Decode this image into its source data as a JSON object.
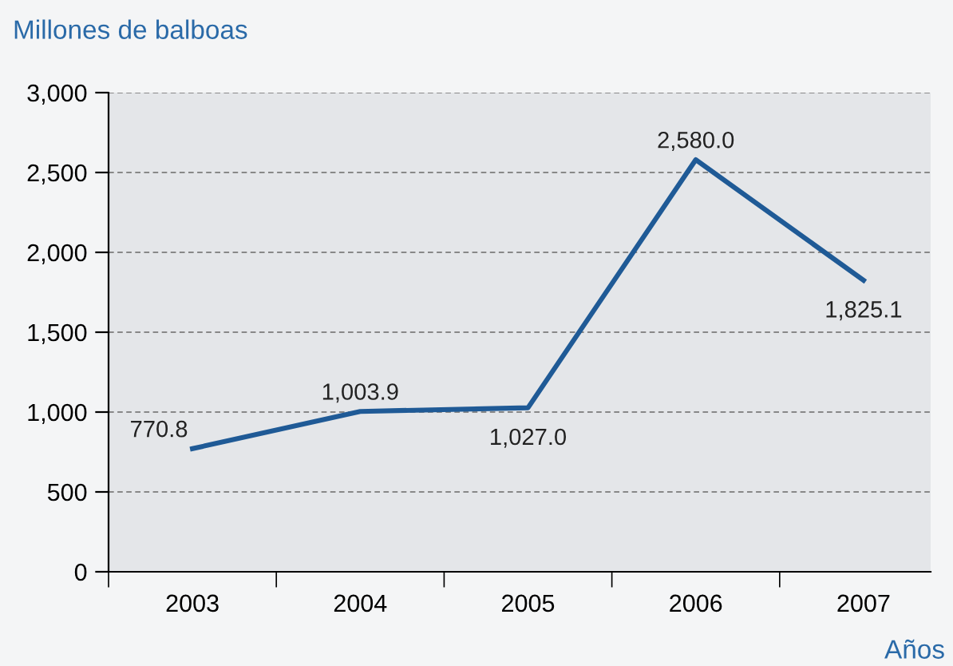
{
  "chart_data": {
    "type": "line",
    "ylabel": "Millones de balboas",
    "xlabel": "Años",
    "categories": [
      "2003",
      "2004",
      "2005",
      "2006",
      "2007"
    ],
    "series": [
      {
        "color": "#1f5a96",
        "values": [
          770.8,
          1003.9,
          1027.0,
          2580.0,
          1825.1
        ],
        "value_labels": [
          "770.8",
          "1,003.9",
          "1,027.0",
          "2,580.0",
          "1,825.1"
        ]
      }
    ],
    "ylim": [
      0,
      3000
    ],
    "yticks": [
      0,
      500,
      {
        "value": 1000,
        "label": "1,000"
      },
      {
        "value": 1500,
        "label": "1,500"
      },
      {
        "value": 2000,
        "label": "2,000"
      },
      {
        "value": 2500,
        "label": "2,500"
      },
      {
        "value": 3000,
        "label": "3,000"
      }
    ],
    "grid": "y",
    "legend": false,
    "marker": "none",
    "line_style": "solid"
  }
}
